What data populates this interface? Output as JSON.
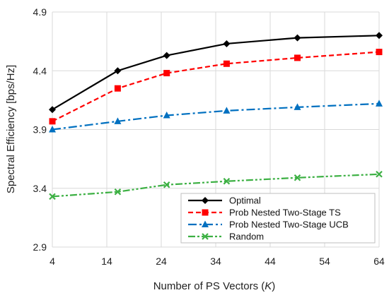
{
  "chart_data": {
    "type": "line",
    "title": "",
    "xlabel": "Number of PS Vectors (",
    "xlabel_var": "K",
    "xlabel_tail": ")",
    "ylabel": "Spectral Efficiency [bps/Hz]",
    "xlim": [
      4,
      64
    ],
    "ylim": [
      2.9,
      4.9
    ],
    "xticks": [
      "4",
      "14",
      "24",
      "34",
      "44",
      "54",
      "64"
    ],
    "yticks": [
      "2.9",
      "3.4",
      "3.9",
      "4.4",
      "4.9"
    ],
    "grid": true,
    "legend_position": "bottom-right",
    "x": [
      4,
      16,
      25,
      36,
      49,
      64
    ],
    "series": [
      {
        "name": "Optimal",
        "marker": "diamond",
        "dash": "solid",
        "color": "#000000",
        "values": [
          4.07,
          4.4,
          4.53,
          4.63,
          4.68,
          4.7
        ]
      },
      {
        "name": "Prob Nested Two-Stage TS",
        "marker": "square",
        "dash": "dashed",
        "color": "#ff0000",
        "values": [
          3.97,
          4.25,
          4.38,
          4.46,
          4.51,
          4.56
        ]
      },
      {
        "name": "Prob Nested Two-Stage UCB",
        "marker": "triangle",
        "dash": "dashdot",
        "color": "#0070c0",
        "values": [
          3.9,
          3.97,
          4.02,
          4.06,
          4.09,
          4.12
        ]
      },
      {
        "name": "Random",
        "marker": "x",
        "dash": "dashdotdot",
        "color": "#3cb043",
        "values": [
          3.33,
          3.37,
          3.43,
          3.46,
          3.49,
          3.52
        ]
      }
    ]
  }
}
